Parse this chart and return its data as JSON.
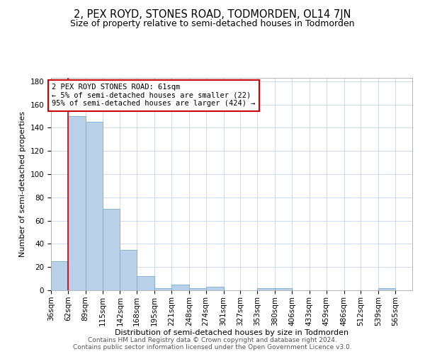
{
  "title": "2, PEX ROYD, STONES ROAD, TODMORDEN, OL14 7JN",
  "subtitle": "Size of property relative to semi-detached houses in Todmorden",
  "xlabel": "Distribution of semi-detached houses by size in Todmorden",
  "ylabel": "Number of semi-detached properties",
  "bar_color": "#b8d0e8",
  "bar_edge_color": "#7aaed0",
  "marker_color": "#cc0000",
  "background_color": "#ffffff",
  "grid_color": "#c8d4e8",
  "bins": [
    36,
    62,
    89,
    115,
    142,
    168,
    195,
    221,
    248,
    274,
    301,
    327,
    353,
    380,
    406,
    433,
    459,
    486,
    512,
    539,
    565,
    591
  ],
  "bin_labels": [
    "36sqm",
    "62sqm",
    "89sqm",
    "115sqm",
    "142sqm",
    "168sqm",
    "195sqm",
    "221sqm",
    "248sqm",
    "274sqm",
    "301sqm",
    "327sqm",
    "353sqm",
    "380sqm",
    "406sqm",
    "433sqm",
    "459sqm",
    "486sqm",
    "512sqm",
    "539sqm",
    "565sqm"
  ],
  "values": [
    25,
    150,
    145,
    70,
    35,
    12,
    2,
    5,
    2,
    3,
    0,
    0,
    2,
    2,
    0,
    0,
    0,
    0,
    0,
    2,
    0
  ],
  "property_line_x": 62,
  "ylim": [
    0,
    183
  ],
  "yticks": [
    0,
    20,
    40,
    60,
    80,
    100,
    120,
    140,
    160,
    180
  ],
  "annotation_text_line1": "2 PEX ROYD STONES ROAD: 61sqm",
  "annotation_text_line2": "← 5% of semi-detached houses are smaller (22)",
  "annotation_text_line3": "95% of semi-detached houses are larger (424) →",
  "footer_line1": "Contains HM Land Registry data © Crown copyright and database right 2024.",
  "footer_line2": "Contains public sector information licensed under the Open Government Licence v3.0.",
  "title_fontsize": 10.5,
  "subtitle_fontsize": 9,
  "axis_label_fontsize": 8,
  "tick_fontsize": 7.5,
  "annotation_fontsize": 7.5,
  "footer_fontsize": 6.5
}
